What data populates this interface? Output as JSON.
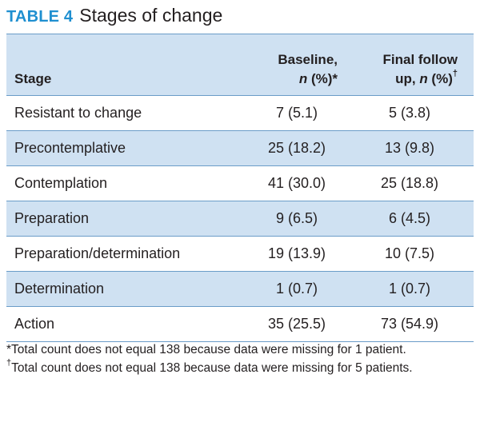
{
  "caption": {
    "label": "TABLE 4",
    "title": "Stages of change"
  },
  "table": {
    "headers": {
      "stage": "Stage",
      "baseline_line1": "Baseline,",
      "baseline_n": "n",
      "baseline_rest": " (%)*",
      "final_line1": "Final follow",
      "final_pre": "up, ",
      "final_n": "n",
      "final_rest": " (%)",
      "final_mark": "†"
    },
    "rows": [
      {
        "stage": "Resistant to change",
        "baseline": "7 (5.1)",
        "final": "5 (3.8)"
      },
      {
        "stage": "Precontemplative",
        "baseline": "25 (18.2)",
        "final": "13 (9.8)"
      },
      {
        "stage": "Contemplation",
        "baseline": "41 (30.0)",
        "final": "25 (18.8)"
      },
      {
        "stage": "Preparation",
        "baseline": "9 (6.5)",
        "final": "6 (4.5)"
      },
      {
        "stage": "Preparation/determination",
        "baseline": "19 (13.9)",
        "final": "10 (7.5)"
      },
      {
        "stage": "Determination",
        "baseline": "1 (0.7)",
        "final": "1 (0.7)"
      },
      {
        "stage": "Action",
        "baseline": "35 (25.5)",
        "final": "73 (54.9)"
      }
    ]
  },
  "footnotes": {
    "first": "*Total count does not equal 138 because data were missing for 1 patient.",
    "second_mark": "†",
    "second": "Total count does not equal 138 because data were missing for 5 patients."
  },
  "colors": {
    "accent": "#1f8fd0",
    "row_shade": "#cfe1f2",
    "rule": "#6a9cc8",
    "text": "#231f20"
  }
}
